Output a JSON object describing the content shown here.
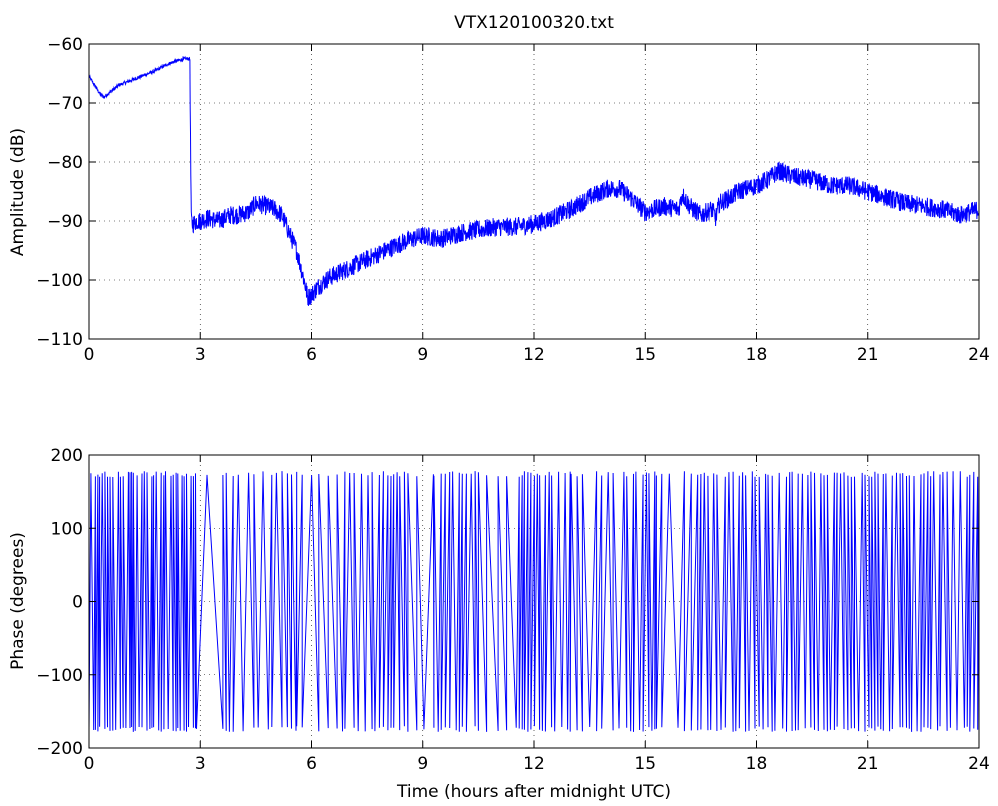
{
  "chart_data": [
    {
      "type": "line",
      "title": "VTX120100320.txt",
      "xlabel": "",
      "ylabel": "Amplitude (dB)",
      "xlim": [
        0,
        24
      ],
      "ylim": [
        -110,
        -60
      ],
      "xticks": [
        0,
        3,
        6,
        9,
        12,
        15,
        18,
        21,
        24
      ],
      "yticks": [
        -60,
        -70,
        -80,
        -90,
        -100,
        -110
      ],
      "xtick_labels": [
        "0",
        "3",
        "6",
        "9",
        "12",
        "15",
        "18",
        "21",
        "24"
      ],
      "ytick_labels": [
        "−60",
        "−70",
        "−80",
        "−90",
        "−100",
        "−110"
      ],
      "grid": true,
      "line_color": "#0000ff",
      "series": [
        {
          "x": [
            0,
            0.1,
            0.2,
            0.3,
            0.4,
            0.5,
            0.6,
            0.8,
            1.0,
            1.2,
            1.4,
            1.6,
            1.8,
            2.0,
            2.2,
            2.4,
            2.6,
            2.72,
            2.74,
            2.76,
            2.8,
            2.9,
            3.0,
            3.2,
            3.5,
            3.8,
            4.0,
            4.3,
            4.5,
            4.8,
            5.0,
            5.2,
            5.4,
            5.6,
            5.8,
            5.9,
            6.0,
            6.2,
            6.5,
            7.0,
            7.5,
            8.0,
            8.5,
            9.0,
            9.5,
            10.0,
            10.5,
            11.0,
            11.5,
            12.0,
            12.5,
            13.0,
            13.5,
            14.0,
            14.3,
            14.6,
            15.0,
            15.5,
            15.9,
            16.0,
            16.2,
            16.5,
            16.8,
            16.9,
            17.0,
            17.3,
            17.5,
            18.0,
            18.3,
            18.6,
            19.0,
            19.5,
            20.0,
            20.5,
            21.0,
            21.5,
            22.0,
            22.5,
            23.0,
            23.5,
            24.0
          ],
          "y": [
            -65.5,
            -66.5,
            -67.5,
            -68.5,
            -69,
            -68.5,
            -68,
            -67,
            -66.5,
            -66,
            -65.5,
            -65,
            -64.5,
            -63.8,
            -63.2,
            -62.8,
            -62.5,
            -62.5,
            -80,
            -90,
            -90.5,
            -90,
            -90,
            -89.5,
            -90,
            -89,
            -89,
            -88.5,
            -87,
            -87.5,
            -88,
            -89,
            -92,
            -95,
            -100,
            -103,
            -102.5,
            -101,
            -99.5,
            -98,
            -96.5,
            -95,
            -93.5,
            -92.5,
            -93,
            -92,
            -91.5,
            -91,
            -91,
            -90.5,
            -89.5,
            -88,
            -86,
            -84.5,
            -84.5,
            -86,
            -88.5,
            -87.5,
            -88,
            -85.5,
            -87.5,
            -89,
            -88,
            -89.5,
            -87,
            -86,
            -85,
            -84,
            -83,
            -81.5,
            -82.5,
            -83,
            -84,
            -84,
            -85,
            -86,
            -87,
            -87.5,
            -88,
            -89,
            -88
          ]
        }
      ]
    },
    {
      "type": "line",
      "title": "",
      "xlabel": "Time (hours after midnight UTC)",
      "ylabel": "Phase (degrees)",
      "xlim": [
        0,
        24
      ],
      "ylim": [
        -200,
        200
      ],
      "xticks": [
        0,
        3,
        6,
        9,
        12,
        15,
        18,
        21,
        24
      ],
      "yticks": [
        200,
        100,
        0,
        -100,
        -200
      ],
      "xtick_labels": [
        "0",
        "3",
        "6",
        "9",
        "12",
        "15",
        "18",
        "21",
        "24"
      ],
      "ytick_labels": [
        "200",
        "100",
        "0",
        "−100",
        "−200"
      ],
      "grid": true,
      "line_color": "#0000ff",
      "phase_wrap_segments": [
        {
          "start": 0.0,
          "end": 2.9,
          "period_hours": 0.06
        },
        {
          "start": 2.9,
          "end": 3.7,
          "period_hours": 0.35
        },
        {
          "start": 3.7,
          "end": 5.6,
          "period_hours": 0.12
        },
        {
          "start": 5.6,
          "end": 6.9,
          "period_hours": 0.2
        },
        {
          "start": 6.9,
          "end": 8.6,
          "period_hours": 0.1
        },
        {
          "start": 8.6,
          "end": 9.3,
          "period_hours": 0.2
        },
        {
          "start": 9.3,
          "end": 10.5,
          "period_hours": 0.1
        },
        {
          "start": 10.5,
          "end": 11.6,
          "period_hours": 0.3
        },
        {
          "start": 11.6,
          "end": 13.0,
          "period_hours": 0.08
        },
        {
          "start": 13.0,
          "end": 14.5,
          "period_hours": 0.18
        },
        {
          "start": 14.5,
          "end": 15.3,
          "period_hours": 0.09
        },
        {
          "start": 15.3,
          "end": 16.5,
          "period_hours": 0.2
        },
        {
          "start": 16.5,
          "end": 24.0,
          "period_hours": 0.09
        }
      ]
    }
  ]
}
